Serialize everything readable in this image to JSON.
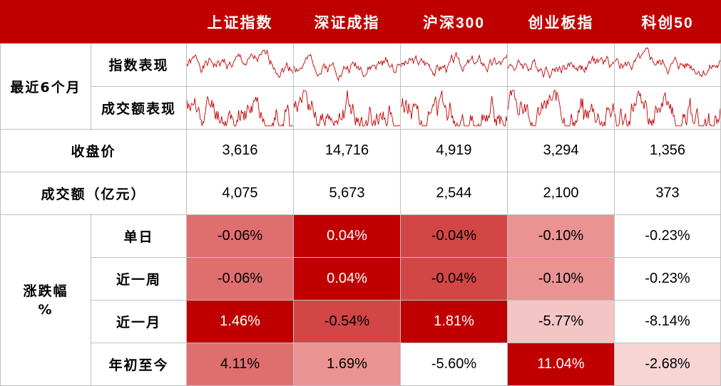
{
  "header": {
    "columns": [
      "上证指数",
      "深证成指",
      "沪深300",
      "创业板指",
      "科创50"
    ]
  },
  "section_recent": {
    "label": "最近6个月",
    "index_perf_label": "指数表现",
    "volume_perf_label": "成交额表现"
  },
  "close_row": {
    "label": "收盘价",
    "values": [
      "3,616",
      "14,716",
      "4,919",
      "3,294",
      "1,356"
    ]
  },
  "turnover_row": {
    "label": "成交额（亿元）",
    "values": [
      "4,075",
      "5,673",
      "2,544",
      "2,100",
      "373"
    ]
  },
  "change_section": {
    "label_line1": "涨跌幅",
    "label_line2": "%",
    "rows": [
      {
        "label": "单日",
        "values": [
          "-0.06%",
          "0.04%",
          "-0.04%",
          "-0.10%",
          "-0.23%"
        ],
        "colors": [
          "#df6f6f",
          "#c00000",
          "#d24646",
          "#e99393",
          "#ffffff"
        ]
      },
      {
        "label": "近一周",
        "values": [
          "-0.06%",
          "0.04%",
          "-0.04%",
          "-0.10%",
          "-0.23%"
        ],
        "colors": [
          "#df6f6f",
          "#c00000",
          "#d24646",
          "#e99393",
          "#ffffff"
        ]
      },
      {
        "label": "近一月",
        "values": [
          "1.46%",
          "-0.54%",
          "1.81%",
          "-5.77%",
          "-8.14%"
        ],
        "colors": [
          "#c00000",
          "#d24646",
          "#c00000",
          "#f3c5c5",
          "#ffffff"
        ]
      },
      {
        "label": "年初至今",
        "values": [
          "4.11%",
          "1.69%",
          "-5.60%",
          "11.04%",
          "-2.68%"
        ],
        "colors": [
          "#df6f6f",
          "#e99393",
          "#ffffff",
          "#c00000",
          "#f7d5d5"
        ]
      }
    ]
  },
  "colors": {
    "header_bg": "#c00000",
    "header_text": "#ffffff",
    "sparkline": "#c00000",
    "grid": "#bfbfbf"
  }
}
